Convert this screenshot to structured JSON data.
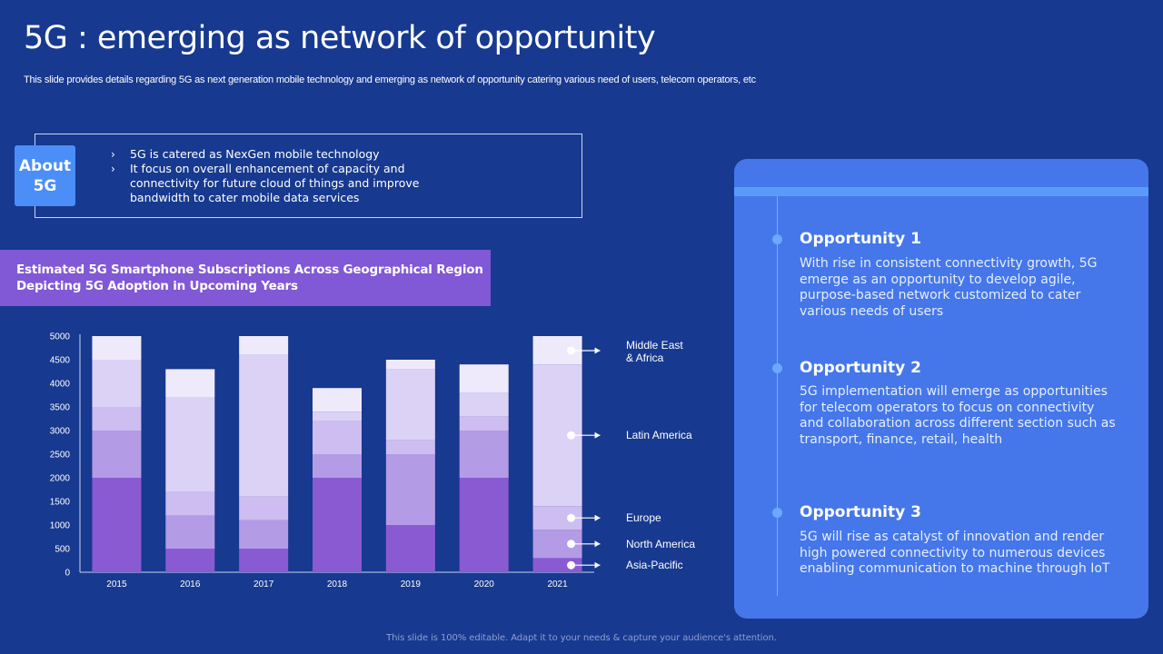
{
  "title": "5G : emerging as network of opportunity",
  "subtitle": "This slide provides details regarding 5G as next generation mobile technology and emerging as network of opportunity catering various need of users, telecom operators, etc",
  "about": {
    "tag_line1": "About",
    "tag_line2": "5G",
    "bullet_glyph": "›",
    "bullets": [
      "5G is catered as NexGen mobile technology",
      "It focus on overall enhancement of capacity and connectivity for future cloud of things and improve bandwidth to cater mobile data services"
    ]
  },
  "chart_banner": {
    "line1": "Estimated 5G Smartphone Subscriptions Across Geographical Region",
    "line2": "Depicting 5G Adoption in Upcoming Years"
  },
  "chart_data": {
    "type": "bar",
    "stacked": true,
    "title": "Estimated 5G Smartphone Subscriptions Across Geographical Region Depicting 5G Adoption in Upcoming Years",
    "xlabel": "",
    "ylabel": "",
    "ylim": [
      0,
      5000
    ],
    "yticks": [
      0,
      500,
      1000,
      1500,
      2000,
      2500,
      3000,
      3500,
      4000,
      4500,
      5000
    ],
    "categories": [
      "2015",
      "2016",
      "2017",
      "2018",
      "2019",
      "2020",
      "2021"
    ],
    "legend_placement": "right",
    "grid": false,
    "series": [
      {
        "name": "Asia-Pacific",
        "color": "#8a5ad3",
        "values": [
          2000,
          500,
          500,
          2000,
          1000,
          2000,
          300
        ]
      },
      {
        "name": "North America",
        "color": "#b39be6",
        "values": [
          1000,
          700,
          600,
          500,
          1500,
          1000,
          600
        ]
      },
      {
        "name": "Europe",
        "color": "#cdbdf0",
        "values": [
          500,
          500,
          500,
          700,
          300,
          300,
          500
        ]
      },
      {
        "name": "Latin America",
        "color": "#dcd2f5",
        "values": [
          1000,
          2000,
          3000,
          200,
          1500,
          500,
          3000
        ]
      },
      {
        "name": "Middle East & Africa",
        "color": "#efeafb",
        "values": [
          500,
          600,
          400,
          500,
          200,
          600,
          600
        ]
      }
    ]
  },
  "legend_labels": [
    {
      "lines": [
        "Middle East",
        "& Africa"
      ]
    },
    {
      "lines": [
        "Latin America"
      ]
    },
    {
      "lines": [
        "Europe"
      ]
    },
    {
      "lines": [
        "North America"
      ]
    },
    {
      "lines": [
        "Asia-Pacific"
      ]
    }
  ],
  "opportunities": [
    {
      "heading": "Opportunity 1",
      "text": "With rise in consistent connectivity growth, 5G emerge as an opportunity to develop agile, purpose-based network customized to cater various needs of users"
    },
    {
      "heading": "Opportunity 2",
      "text": "5G implementation will emerge as opportunities for telecom operators to focus on connectivity and collaboration across different section such as transport, finance, retail, health"
    },
    {
      "heading": "Opportunity 3",
      "text": "5G will rise as catalyst of innovation and render high powered connectivity to numerous devices enabling communication to machine through IoT"
    }
  ],
  "footer": "This slide is 100% editable. Adapt it to your needs & capture your audience's attention."
}
